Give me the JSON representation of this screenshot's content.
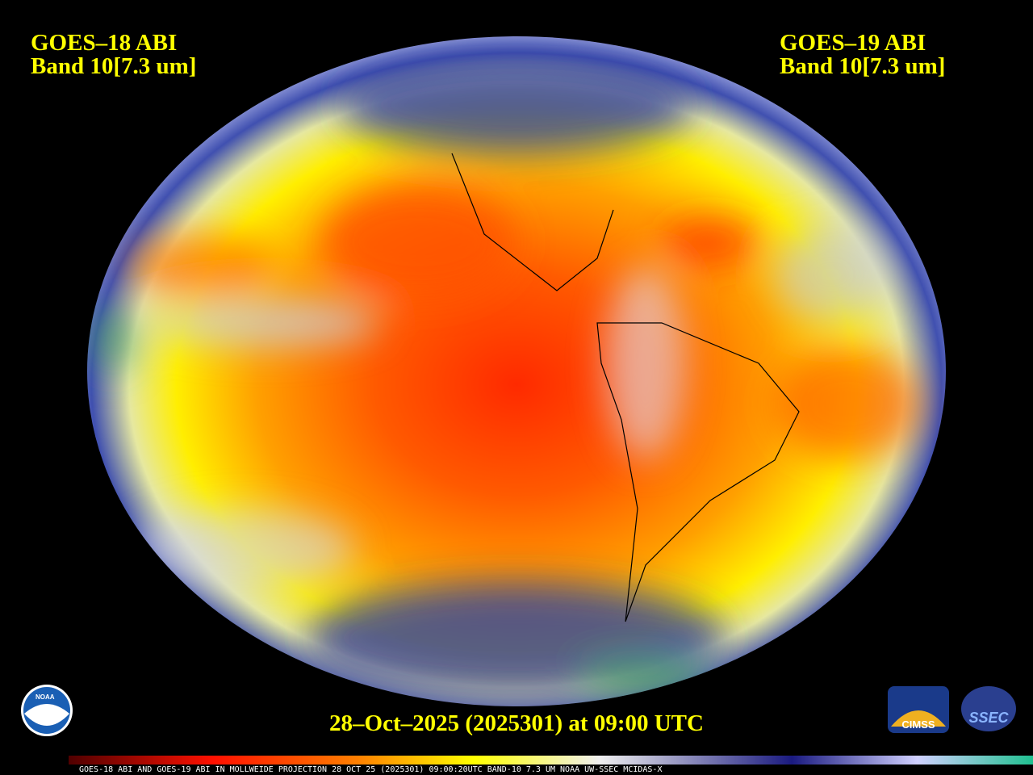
{
  "left_label": {
    "satellite": "GOES–18 ABI",
    "band": "Band 10[7.3 um]"
  },
  "right_label": {
    "satellite": "GOES–19 ABI",
    "band": "Band 10[7.3 um]"
  },
  "timestamp": "28–Oct–2025 (2025301) at 09:00 UTC",
  "caption": "GOES-18 ABI AND GOES-19 ABI IN MOLLWEIDE PROJECTION 28 OCT 25 (2025301) 09:00:20UTC BAND-10 7.3 UM NOAA UW-SSEC MCIDAS-X",
  "logos": {
    "noaa": "NOAA",
    "cimss": "CIMSS",
    "ssec": "SSEC"
  }
}
